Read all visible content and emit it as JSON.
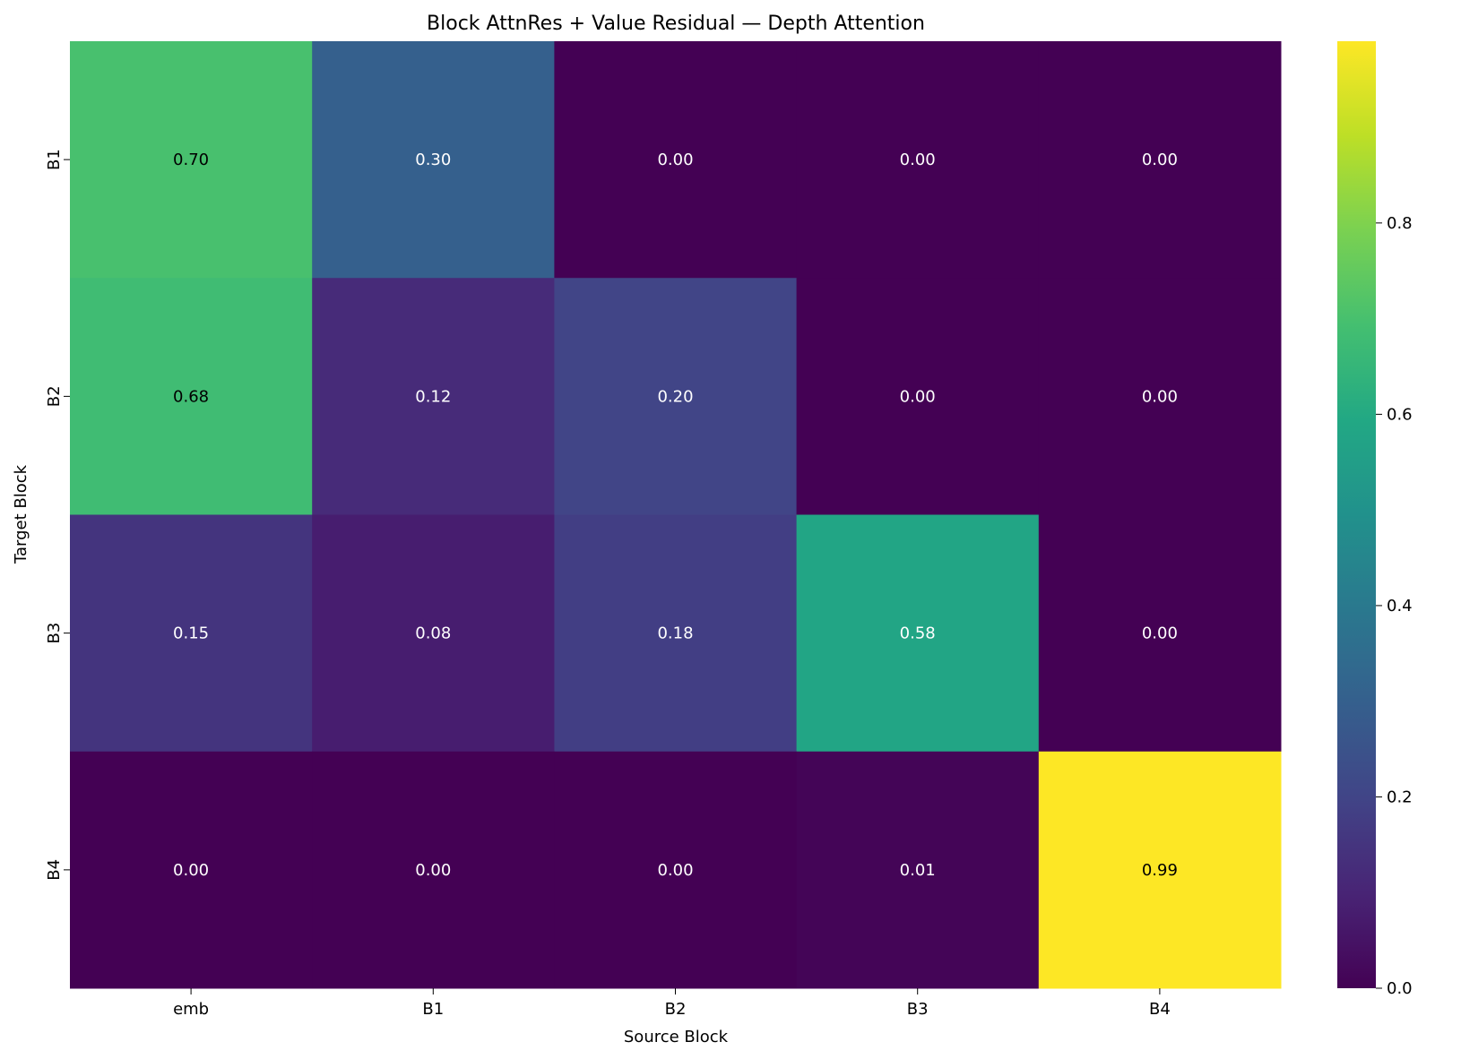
{
  "chart_data": {
    "type": "heatmap",
    "title": "Block AttnRes + Value Residual — Depth Attention",
    "xlabel": "Source Block",
    "ylabel": "Target Block",
    "x_categories": [
      "emb",
      "B1",
      "B2",
      "B3",
      "B4"
    ],
    "y_categories": [
      "B1",
      "B2",
      "B3",
      "B4"
    ],
    "values": [
      [
        0.7,
        0.3,
        0.0,
        0.0,
        0.0
      ],
      [
        0.68,
        0.12,
        0.2,
        0.0,
        0.0
      ],
      [
        0.15,
        0.08,
        0.18,
        0.58,
        0.0
      ],
      [
        0.0,
        0.0,
        0.0,
        0.01,
        0.99
      ]
    ],
    "annotation_format": "0.00",
    "colormap": "viridis",
    "colorbar": {
      "range": [
        0.0,
        0.99
      ],
      "ticks": [
        0.0,
        0.2,
        0.4,
        0.6,
        0.8
      ],
      "tick_labels": [
        "0.0",
        "0.2",
        "0.4",
        "0.6",
        "0.8"
      ]
    },
    "grid": false
  }
}
